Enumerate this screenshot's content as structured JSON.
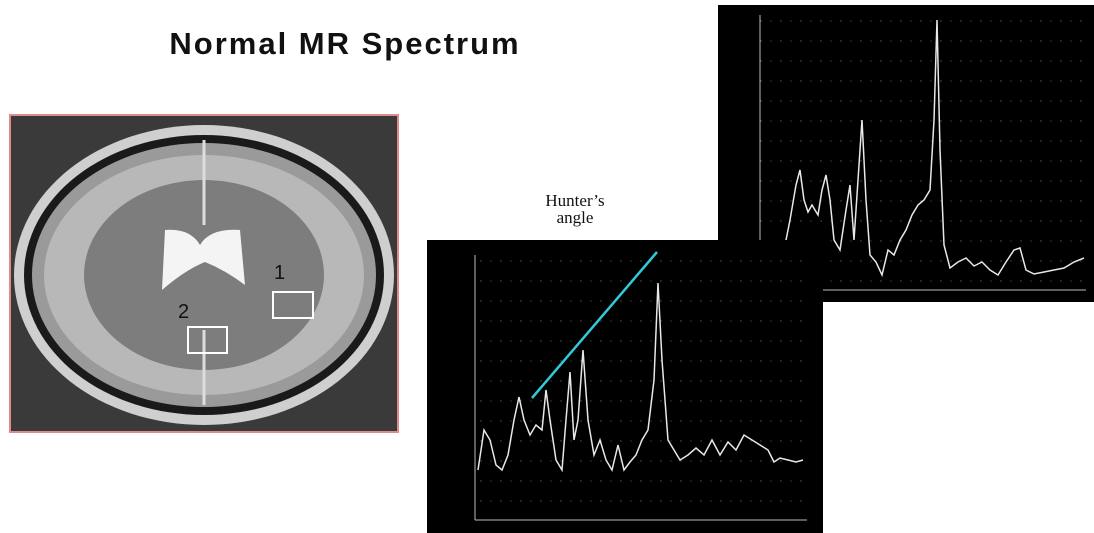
{
  "title": "Normal MR Spectrum",
  "brain": {
    "labels": [
      "1",
      "2"
    ]
  },
  "annotation": "Hunter’s angle"
}
